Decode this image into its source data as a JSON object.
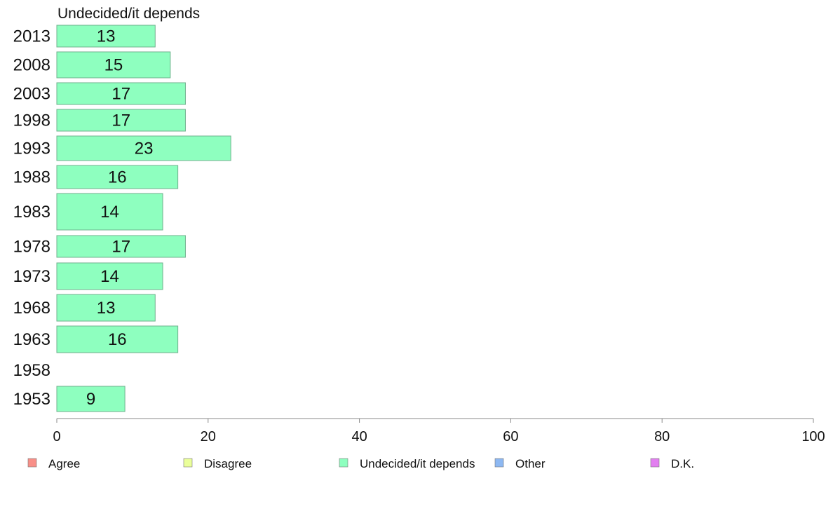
{
  "chart_data": {
    "type": "bar",
    "orientation": "horizontal",
    "title": "Undecided/it depends",
    "categories": [
      "2013",
      "2008",
      "2003",
      "1998",
      "1993",
      "1988",
      "1983",
      "1978",
      "1973",
      "1968",
      "1963",
      "1958",
      "1953"
    ],
    "series": [
      {
        "name": "Undecided/it depends",
        "color": "#8effbf",
        "values": [
          13,
          15,
          17,
          17,
          23,
          16,
          14,
          17,
          14,
          13,
          16,
          null,
          9
        ]
      }
    ],
    "value_labels": [
      "13",
      "15",
      "17",
      "17",
      "23",
      "16",
      "14",
      "17",
      "14",
      "13",
      "16",
      "",
      "9"
    ],
    "xlim": [
      0,
      100
    ],
    "xticks": [
      "0",
      "20",
      "40",
      "60",
      "80",
      "100"
    ],
    "grid": false,
    "legend_position": "bottom",
    "legend": [
      {
        "label": "Agree",
        "color": "#f88f88"
      },
      {
        "label": "Disagree",
        "color": "#eaff9a"
      },
      {
        "label": "Undecided/it depends",
        "color": "#8effbf"
      },
      {
        "label": "Other",
        "color": "#8db8f2"
      },
      {
        "label": "D.K.",
        "color": "#e27ff0"
      }
    ]
  }
}
